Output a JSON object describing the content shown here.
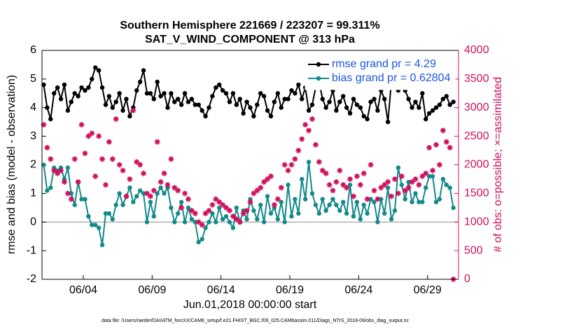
{
  "chart_data": {
    "type": "line",
    "title": "Southern Hemisphere 221669 / 223207 = 99.311%",
    "subtitle": "SAT_V_WIND_COMPONENT @ 313 hPa",
    "xlabel": "Jun.01,2018 00:00:00 start",
    "ylabel": "rmse and bias (model - observation)",
    "y2label": "# of obs: o=possible; ×=assimilated",
    "footnote": "data file: /Users/raeder/DAI/ATM_forcXX/CAM6_setup/f.e21.FHIST_BGC.f09_025.CAM6assim.011/Diags_NTrS_2018-06/obs_diag_output.nc",
    "xlim": [
      0,
      30.25
    ],
    "xticks": [
      {
        "value": 3,
        "label": "06/04"
      },
      {
        "value": 8,
        "label": "06/09"
      },
      {
        "value": 13,
        "label": "06/14"
      },
      {
        "value": 18,
        "label": "06/19"
      },
      {
        "value": 23,
        "label": "06/24"
      },
      {
        "value": 28,
        "label": "06/29"
      }
    ],
    "ylim": [
      -2,
      6
    ],
    "yticks": [
      -2,
      -1,
      0,
      1,
      2,
      3,
      4,
      5,
      6
    ],
    "y2lim": [
      0,
      4000
    ],
    "y2ticks": [
      0,
      500,
      1000,
      1500,
      2000,
      2500,
      3000,
      3500,
      4000
    ],
    "zero_line_color": "#b0b0b0",
    "legend": "upper right",
    "legend_text_color": "#1a56e0",
    "x": [
      0.125,
      0.375,
      0.625,
      0.875,
      1.125,
      1.375,
      1.625,
      1.875,
      2.125,
      2.375,
      2.625,
      2.875,
      3.125,
      3.375,
      3.625,
      3.875,
      4.125,
      4.375,
      4.625,
      4.875,
      5.125,
      5.375,
      5.625,
      5.875,
      6.125,
      6.375,
      6.625,
      6.875,
      7.125,
      7.375,
      7.625,
      7.875,
      8.125,
      8.375,
      8.625,
      8.875,
      9.125,
      9.375,
      9.625,
      9.875,
      10.125,
      10.375,
      10.625,
      10.875,
      11.125,
      11.375,
      11.625,
      11.875,
      12.125,
      12.375,
      12.625,
      12.875,
      13.125,
      13.375,
      13.625,
      13.875,
      14.125,
      14.375,
      14.625,
      14.875,
      15.125,
      15.375,
      15.625,
      15.875,
      16.125,
      16.375,
      16.625,
      16.875,
      17.125,
      17.375,
      17.625,
      17.875,
      18.125,
      18.375,
      18.625,
      18.875,
      19.125,
      19.375,
      19.625,
      19.875,
      20.125,
      20.375,
      20.625,
      20.875,
      21.125,
      21.375,
      21.625,
      21.875,
      22.125,
      22.375,
      22.625,
      22.875,
      23.125,
      23.375,
      23.625,
      23.875,
      24.125,
      24.375,
      24.625,
      24.875,
      25.125,
      25.375,
      25.625,
      25.875,
      26.125,
      26.375,
      26.625,
      26.875,
      27.125,
      27.375,
      27.625,
      27.875,
      28.125,
      28.375,
      28.625,
      28.875,
      29.125,
      29.375,
      29.625,
      29.875
    ],
    "series": [
      {
        "name": "rmse grand pr = 4.29",
        "color": "#000000",
        "marker": "circle",
        "values": [
          4.8,
          4.0,
          3.6,
          4.5,
          4.7,
          4.3,
          4.8,
          3.9,
          4.2,
          4.5,
          4.4,
          4.7,
          4.6,
          4.7,
          5.0,
          5.4,
          5.3,
          4.7,
          4.1,
          4.4,
          4.0,
          4.2,
          4.5,
          3.9,
          4.3,
          3.7,
          4.0,
          4.6,
          4.9,
          5.3,
          4.5,
          4.5,
          4.3,
          4.9,
          4.4,
          4.5,
          4.0,
          4.5,
          4.2,
          4.3,
          4.1,
          4.5,
          4.2,
          4.3,
          4.1,
          4.1,
          3.9,
          3.7,
          4.0,
          4.4,
          4.7,
          4.8,
          4.6,
          4.5,
          4.2,
          4.5,
          4.1,
          4.3,
          3.8,
          4.2,
          4.0,
          3.7,
          4.1,
          4.5,
          4.4,
          3.9,
          3.7,
          4.2,
          4.5,
          4.0,
          4.3,
          4.3,
          4.6,
          4.5,
          4.8,
          4.3,
          4.7,
          3.9,
          4.1,
          4.7,
          4.9,
          4.3,
          4.0,
          4.2,
          4.6,
          3.9,
          4.2,
          4.4,
          4.0,
          3.8,
          4.3,
          4.1,
          4.0,
          3.7,
          3.6,
          4.2,
          4.3,
          3.9,
          4.6,
          4.3,
          3.5,
          4.9,
          4.7,
          4.6,
          5.0,
          4.6,
          4.3,
          4.0,
          4.2,
          4.0,
          4.5,
          3.6,
          3.8,
          3.9,
          4.0,
          4.1,
          4.3,
          4.4,
          4.1,
          4.2
        ]
      },
      {
        "name": "bias grand pr = 0.62804",
        "color": "#138a8a",
        "marker": "circle",
        "values": [
          2.0,
          1.1,
          1.2,
          1.9,
          1.8,
          1.9,
          1.5,
          1.9,
          1.0,
          0.6,
          1.4,
          0.8,
          0.8,
          0.2,
          -0.1,
          -0.1,
          -0.2,
          -0.8,
          0.3,
          0.3,
          0.1,
          0.6,
          1.0,
          0.6,
          0.9,
          1.2,
          0.7,
          0.9,
          1.1,
          1.0,
          0.0,
          0.7,
          0.2,
          1.0,
          1.2,
          1.0,
          1.2,
          0.5,
          0.0,
          0.3,
          0.7,
          0.0,
          0.5,
          0.1,
          0.0,
          -0.7,
          -0.6,
          -0.2,
          0.0,
          0.3,
          0.0,
          0.5,
          0.1,
          0.2,
          0.0,
          -0.2,
          0.5,
          0.0,
          0.4,
          0.1,
          0.8,
          0.4,
          0.1,
          0.6,
          0.0,
          0.9,
          0.3,
          0.5,
          0.1,
          0.7,
          0.0,
          1.3,
          0.2,
          0.8,
          0.3,
          1.5,
          0.8,
          2.1,
          1.0,
          0.6,
          0.3,
          0.8,
          0.4,
          0.6,
          0.8,
          0.6,
          0.4,
          0.7,
          0.3,
          1.3,
          0.2,
          0.7,
          0.1,
          0.6,
          0.3,
          0.8,
          0.7,
          0.0,
          0.8,
          0.3,
          1.2,
          0.1,
          0.4,
          1.9,
          1.3,
          0.8,
          1.4,
          0.7,
          1.0,
          0.7,
          0.7,
          1.2,
          1.6,
          1.6,
          0.7,
          0.8,
          1.5,
          1.3,
          1.2,
          0.5
        ]
      },
      {
        "axis": "y2",
        "color": "#d0105c",
        "marker": "asterisk",
        "values": [
          2700,
          2300,
          2100,
          1900,
          1850,
          1900,
          1700,
          1500,
          1400,
          2100,
          1700,
          2700,
          2200,
          2500,
          2550,
          1800,
          2500,
          2100,
          1650,
          2400,
          2100,
          2800,
          2000,
          1900,
          1450,
          1750,
          2950,
          2050,
          2000,
          1850,
          1500,
          1450,
          1550,
          2400,
          1700,
          1850,
          1650,
          2100,
          1600,
          1550,
          1250,
          1500,
          1400,
          1200,
          1150,
          1000,
          950,
          1150,
          1200,
          1300,
          1400,
          1350,
          1300,
          1250,
          1200,
          1100,
          1050,
          1000,
          1150,
          1200,
          1350,
          1500,
          1550,
          1600,
          1700,
          1750,
          1800,
          1300,
          1400,
          1600,
          2000,
          1900,
          2000,
          2100,
          2250,
          2450,
          2700,
          2600,
          2800,
          2350,
          2050,
          1900,
          1850,
          1650,
          1550,
          1700,
          1900,
          1650,
          1600,
          1750,
          1450,
          1800,
          1650,
          1850,
          1400,
          2000,
          1550,
          1400,
          1600,
          1650,
          1700,
          1450,
          1750,
          1500,
          1800,
          1550,
          1600,
          1700,
          1750,
          1650,
          1800,
          1850,
          2300,
          1900,
          2350,
          2000,
          2600,
          2400,
          2300,
          0
        ]
      }
    ]
  }
}
